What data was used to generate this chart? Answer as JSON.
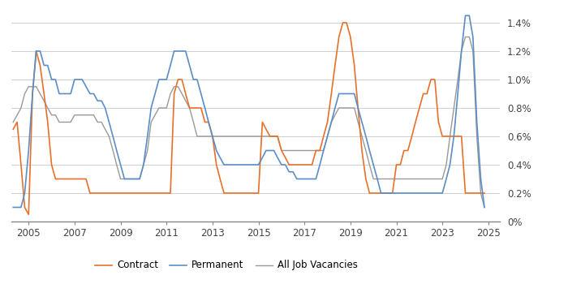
{
  "ylim": [
    0,
    0.015
  ],
  "yticks": [
    0,
    0.002,
    0.004,
    0.006,
    0.008,
    0.01,
    0.012,
    0.014
  ],
  "ytick_labels": [
    "0%",
    "0.2%",
    "0.4%",
    "0.6%",
    "0.8%",
    "1.0%",
    "1.2%",
    "1.4%"
  ],
  "xlim_start": 2004.25,
  "xlim_end": 2025.5,
  "xticks": [
    2005,
    2007,
    2009,
    2011,
    2013,
    2015,
    2017,
    2019,
    2021,
    2023,
    2025
  ],
  "background_color": "#ffffff",
  "grid_color": "#d0d0d0",
  "contract_color": "#E8702A",
  "permanent_color": "#5B8DC8",
  "all_jobs_color": "#999999",
  "legend_labels": [
    "Contract",
    "Permanent",
    "All Job Vacancies"
  ],
  "contract": [
    [
      2004.33,
      0.0065
    ],
    [
      2004.5,
      0.007
    ],
    [
      2004.67,
      0.004
    ],
    [
      2004.83,
      0.001
    ],
    [
      2005.0,
      0.0005
    ],
    [
      2005.17,
      0.009
    ],
    [
      2005.33,
      0.012
    ],
    [
      2005.5,
      0.011
    ],
    [
      2005.67,
      0.009
    ],
    [
      2005.83,
      0.007
    ],
    [
      2006.0,
      0.004
    ],
    [
      2006.17,
      0.003
    ],
    [
      2006.33,
      0.003
    ],
    [
      2006.5,
      0.003
    ],
    [
      2006.67,
      0.003
    ],
    [
      2006.83,
      0.003
    ],
    [
      2007.0,
      0.003
    ],
    [
      2007.17,
      0.003
    ],
    [
      2007.33,
      0.003
    ],
    [
      2007.5,
      0.003
    ],
    [
      2007.67,
      0.002
    ],
    [
      2007.83,
      0.002
    ],
    [
      2008.0,
      0.002
    ],
    [
      2008.17,
      0.002
    ],
    [
      2008.33,
      0.002
    ],
    [
      2008.5,
      0.002
    ],
    [
      2008.67,
      0.002
    ],
    [
      2008.83,
      0.002
    ],
    [
      2009.0,
      0.002
    ],
    [
      2009.17,
      0.002
    ],
    [
      2009.33,
      0.002
    ],
    [
      2009.5,
      0.002
    ],
    [
      2009.67,
      0.002
    ],
    [
      2009.83,
      0.002
    ],
    [
      2010.0,
      0.002
    ],
    [
      2010.17,
      0.002
    ],
    [
      2010.33,
      0.002
    ],
    [
      2010.5,
      0.002
    ],
    [
      2010.67,
      0.002
    ],
    [
      2010.83,
      0.002
    ],
    [
      2011.0,
      0.002
    ],
    [
      2011.17,
      0.002
    ],
    [
      2011.33,
      0.009
    ],
    [
      2011.5,
      0.01
    ],
    [
      2011.67,
      0.01
    ],
    [
      2011.83,
      0.009
    ],
    [
      2012.0,
      0.008
    ],
    [
      2012.17,
      0.008
    ],
    [
      2012.33,
      0.008
    ],
    [
      2012.5,
      0.008
    ],
    [
      2012.67,
      0.007
    ],
    [
      2012.83,
      0.007
    ],
    [
      2013.0,
      0.006
    ],
    [
      2013.17,
      0.004
    ],
    [
      2013.33,
      0.003
    ],
    [
      2013.5,
      0.002
    ],
    [
      2013.67,
      0.002
    ],
    [
      2013.83,
      0.002
    ],
    [
      2014.0,
      0.002
    ],
    [
      2014.17,
      0.002
    ],
    [
      2014.33,
      0.002
    ],
    [
      2014.5,
      0.002
    ],
    [
      2014.67,
      0.002
    ],
    [
      2014.83,
      0.002
    ],
    [
      2015.0,
      0.002
    ],
    [
      2015.17,
      0.007
    ],
    [
      2015.33,
      0.0065
    ],
    [
      2015.5,
      0.006
    ],
    [
      2015.67,
      0.006
    ],
    [
      2015.83,
      0.006
    ],
    [
      2016.0,
      0.005
    ],
    [
      2016.17,
      0.0045
    ],
    [
      2016.33,
      0.004
    ],
    [
      2016.5,
      0.004
    ],
    [
      2016.67,
      0.004
    ],
    [
      2016.83,
      0.004
    ],
    [
      2017.0,
      0.004
    ],
    [
      2017.17,
      0.004
    ],
    [
      2017.33,
      0.004
    ],
    [
      2017.5,
      0.005
    ],
    [
      2017.67,
      0.005
    ],
    [
      2017.83,
      0.006
    ],
    [
      2018.0,
      0.007
    ],
    [
      2018.17,
      0.009
    ],
    [
      2018.33,
      0.011
    ],
    [
      2018.5,
      0.013
    ],
    [
      2018.67,
      0.014
    ],
    [
      2018.83,
      0.014
    ],
    [
      2019.0,
      0.013
    ],
    [
      2019.17,
      0.011
    ],
    [
      2019.33,
      0.008
    ],
    [
      2019.5,
      0.005
    ],
    [
      2019.67,
      0.003
    ],
    [
      2019.83,
      0.002
    ],
    [
      2020.0,
      0.002
    ],
    [
      2020.17,
      0.002
    ],
    [
      2020.33,
      0.002
    ],
    [
      2020.5,
      0.002
    ],
    [
      2020.67,
      0.002
    ],
    [
      2020.83,
      0.002
    ],
    [
      2021.0,
      0.004
    ],
    [
      2021.17,
      0.004
    ],
    [
      2021.33,
      0.005
    ],
    [
      2021.5,
      0.005
    ],
    [
      2021.67,
      0.006
    ],
    [
      2021.83,
      0.007
    ],
    [
      2022.0,
      0.008
    ],
    [
      2022.17,
      0.009
    ],
    [
      2022.33,
      0.009
    ],
    [
      2022.5,
      0.01
    ],
    [
      2022.67,
      0.01
    ],
    [
      2022.83,
      0.007
    ],
    [
      2023.0,
      0.006
    ],
    [
      2023.17,
      0.006
    ],
    [
      2023.33,
      0.006
    ],
    [
      2023.5,
      0.006
    ],
    [
      2023.67,
      0.006
    ],
    [
      2023.83,
      0.006
    ],
    [
      2024.0,
      0.002
    ],
    [
      2024.17,
      0.002
    ],
    [
      2024.33,
      0.002
    ],
    [
      2024.5,
      0.002
    ],
    [
      2024.67,
      0.002
    ],
    [
      2024.83,
      0.002
    ]
  ],
  "permanent": [
    [
      2004.33,
      0.001
    ],
    [
      2004.5,
      0.001
    ],
    [
      2004.67,
      0.001
    ],
    [
      2004.83,
      0.002
    ],
    [
      2005.0,
      0.005
    ],
    [
      2005.17,
      0.009
    ],
    [
      2005.33,
      0.012
    ],
    [
      2005.5,
      0.012
    ],
    [
      2005.67,
      0.011
    ],
    [
      2005.83,
      0.011
    ],
    [
      2006.0,
      0.01
    ],
    [
      2006.17,
      0.01
    ],
    [
      2006.33,
      0.009
    ],
    [
      2006.5,
      0.009
    ],
    [
      2006.67,
      0.009
    ],
    [
      2006.83,
      0.009
    ],
    [
      2007.0,
      0.01
    ],
    [
      2007.17,
      0.01
    ],
    [
      2007.33,
      0.01
    ],
    [
      2007.5,
      0.0095
    ],
    [
      2007.67,
      0.009
    ],
    [
      2007.83,
      0.009
    ],
    [
      2008.0,
      0.0085
    ],
    [
      2008.17,
      0.0085
    ],
    [
      2008.33,
      0.008
    ],
    [
      2008.5,
      0.007
    ],
    [
      2008.67,
      0.006
    ],
    [
      2008.83,
      0.005
    ],
    [
      2009.0,
      0.004
    ],
    [
      2009.17,
      0.003
    ],
    [
      2009.33,
      0.003
    ],
    [
      2009.5,
      0.003
    ],
    [
      2009.67,
      0.003
    ],
    [
      2009.83,
      0.003
    ],
    [
      2010.0,
      0.004
    ],
    [
      2010.17,
      0.006
    ],
    [
      2010.33,
      0.008
    ],
    [
      2010.5,
      0.009
    ],
    [
      2010.67,
      0.01
    ],
    [
      2010.83,
      0.01
    ],
    [
      2011.0,
      0.01
    ],
    [
      2011.17,
      0.011
    ],
    [
      2011.33,
      0.012
    ],
    [
      2011.5,
      0.012
    ],
    [
      2011.67,
      0.012
    ],
    [
      2011.83,
      0.012
    ],
    [
      2012.0,
      0.011
    ],
    [
      2012.17,
      0.01
    ],
    [
      2012.33,
      0.01
    ],
    [
      2012.5,
      0.009
    ],
    [
      2012.67,
      0.008
    ],
    [
      2012.83,
      0.007
    ],
    [
      2013.0,
      0.006
    ],
    [
      2013.17,
      0.005
    ],
    [
      2013.33,
      0.0045
    ],
    [
      2013.5,
      0.004
    ],
    [
      2013.67,
      0.004
    ],
    [
      2013.83,
      0.004
    ],
    [
      2014.0,
      0.004
    ],
    [
      2014.17,
      0.004
    ],
    [
      2014.33,
      0.004
    ],
    [
      2014.5,
      0.004
    ],
    [
      2014.67,
      0.004
    ],
    [
      2014.83,
      0.004
    ],
    [
      2015.0,
      0.004
    ],
    [
      2015.17,
      0.0045
    ],
    [
      2015.33,
      0.005
    ],
    [
      2015.5,
      0.005
    ],
    [
      2015.67,
      0.005
    ],
    [
      2015.83,
      0.0045
    ],
    [
      2016.0,
      0.004
    ],
    [
      2016.17,
      0.004
    ],
    [
      2016.33,
      0.0035
    ],
    [
      2016.5,
      0.0035
    ],
    [
      2016.67,
      0.003
    ],
    [
      2016.83,
      0.003
    ],
    [
      2017.0,
      0.003
    ],
    [
      2017.17,
      0.003
    ],
    [
      2017.33,
      0.003
    ],
    [
      2017.5,
      0.003
    ],
    [
      2017.67,
      0.004
    ],
    [
      2017.83,
      0.005
    ],
    [
      2018.0,
      0.006
    ],
    [
      2018.17,
      0.007
    ],
    [
      2018.33,
      0.008
    ],
    [
      2018.5,
      0.009
    ],
    [
      2018.67,
      0.009
    ],
    [
      2018.83,
      0.009
    ],
    [
      2019.0,
      0.009
    ],
    [
      2019.17,
      0.009
    ],
    [
      2019.33,
      0.008
    ],
    [
      2019.5,
      0.007
    ],
    [
      2019.67,
      0.006
    ],
    [
      2019.83,
      0.005
    ],
    [
      2020.0,
      0.004
    ],
    [
      2020.17,
      0.003
    ],
    [
      2020.33,
      0.002
    ],
    [
      2020.5,
      0.002
    ],
    [
      2020.67,
      0.002
    ],
    [
      2020.83,
      0.002
    ],
    [
      2021.0,
      0.002
    ],
    [
      2021.17,
      0.002
    ],
    [
      2021.33,
      0.002
    ],
    [
      2021.5,
      0.002
    ],
    [
      2021.67,
      0.002
    ],
    [
      2021.83,
      0.002
    ],
    [
      2022.0,
      0.002
    ],
    [
      2022.17,
      0.002
    ],
    [
      2022.33,
      0.002
    ],
    [
      2022.5,
      0.002
    ],
    [
      2022.67,
      0.002
    ],
    [
      2022.83,
      0.002
    ],
    [
      2023.0,
      0.002
    ],
    [
      2023.17,
      0.003
    ],
    [
      2023.33,
      0.004
    ],
    [
      2023.5,
      0.006
    ],
    [
      2023.67,
      0.009
    ],
    [
      2023.83,
      0.012
    ],
    [
      2024.0,
      0.0145
    ],
    [
      2024.17,
      0.0145
    ],
    [
      2024.33,
      0.013
    ],
    [
      2024.5,
      0.007
    ],
    [
      2024.67,
      0.003
    ],
    [
      2024.83,
      0.001
    ]
  ],
  "all_jobs": [
    [
      2004.33,
      0.007
    ],
    [
      2004.5,
      0.0075
    ],
    [
      2004.67,
      0.008
    ],
    [
      2004.83,
      0.009
    ],
    [
      2005.0,
      0.0095
    ],
    [
      2005.17,
      0.0095
    ],
    [
      2005.33,
      0.0095
    ],
    [
      2005.5,
      0.009
    ],
    [
      2005.67,
      0.0085
    ],
    [
      2005.83,
      0.008
    ],
    [
      2006.0,
      0.0075
    ],
    [
      2006.17,
      0.0075
    ],
    [
      2006.33,
      0.007
    ],
    [
      2006.5,
      0.007
    ],
    [
      2006.67,
      0.007
    ],
    [
      2006.83,
      0.007
    ],
    [
      2007.0,
      0.0075
    ],
    [
      2007.17,
      0.0075
    ],
    [
      2007.33,
      0.0075
    ],
    [
      2007.5,
      0.0075
    ],
    [
      2007.67,
      0.0075
    ],
    [
      2007.83,
      0.0075
    ],
    [
      2008.0,
      0.007
    ],
    [
      2008.17,
      0.007
    ],
    [
      2008.33,
      0.0065
    ],
    [
      2008.5,
      0.006
    ],
    [
      2008.67,
      0.005
    ],
    [
      2008.83,
      0.004
    ],
    [
      2009.0,
      0.003
    ],
    [
      2009.17,
      0.003
    ],
    [
      2009.33,
      0.003
    ],
    [
      2009.5,
      0.003
    ],
    [
      2009.67,
      0.003
    ],
    [
      2009.83,
      0.003
    ],
    [
      2010.0,
      0.004
    ],
    [
      2010.17,
      0.005
    ],
    [
      2010.33,
      0.007
    ],
    [
      2010.5,
      0.0075
    ],
    [
      2010.67,
      0.008
    ],
    [
      2010.83,
      0.008
    ],
    [
      2011.0,
      0.008
    ],
    [
      2011.17,
      0.009
    ],
    [
      2011.33,
      0.0095
    ],
    [
      2011.5,
      0.0095
    ],
    [
      2011.67,
      0.009
    ],
    [
      2011.83,
      0.0085
    ],
    [
      2012.0,
      0.008
    ],
    [
      2012.17,
      0.007
    ],
    [
      2012.33,
      0.006
    ],
    [
      2012.5,
      0.006
    ],
    [
      2012.67,
      0.006
    ],
    [
      2012.83,
      0.006
    ],
    [
      2013.0,
      0.006
    ],
    [
      2013.17,
      0.006
    ],
    [
      2013.33,
      0.006
    ],
    [
      2013.5,
      0.006
    ],
    [
      2013.67,
      0.006
    ],
    [
      2013.83,
      0.006
    ],
    [
      2014.0,
      0.006
    ],
    [
      2014.17,
      0.006
    ],
    [
      2014.33,
      0.006
    ],
    [
      2014.5,
      0.006
    ],
    [
      2014.67,
      0.006
    ],
    [
      2014.83,
      0.006
    ],
    [
      2015.0,
      0.006
    ],
    [
      2015.17,
      0.006
    ],
    [
      2015.33,
      0.006
    ],
    [
      2015.5,
      0.006
    ],
    [
      2015.67,
      0.006
    ],
    [
      2015.83,
      0.006
    ],
    [
      2016.0,
      0.005
    ],
    [
      2016.17,
      0.005
    ],
    [
      2016.33,
      0.005
    ],
    [
      2016.5,
      0.005
    ],
    [
      2016.67,
      0.005
    ],
    [
      2016.83,
      0.005
    ],
    [
      2017.0,
      0.005
    ],
    [
      2017.17,
      0.005
    ],
    [
      2017.33,
      0.005
    ],
    [
      2017.5,
      0.005
    ],
    [
      2017.67,
      0.005
    ],
    [
      2017.83,
      0.005
    ],
    [
      2018.0,
      0.006
    ],
    [
      2018.17,
      0.007
    ],
    [
      2018.33,
      0.0075
    ],
    [
      2018.5,
      0.008
    ],
    [
      2018.67,
      0.008
    ],
    [
      2018.83,
      0.008
    ],
    [
      2019.0,
      0.008
    ],
    [
      2019.17,
      0.008
    ],
    [
      2019.33,
      0.007
    ],
    [
      2019.5,
      0.006
    ],
    [
      2019.67,
      0.005
    ],
    [
      2019.83,
      0.004
    ],
    [
      2020.0,
      0.003
    ],
    [
      2020.17,
      0.003
    ],
    [
      2020.33,
      0.003
    ],
    [
      2020.5,
      0.003
    ],
    [
      2020.67,
      0.003
    ],
    [
      2020.83,
      0.003
    ],
    [
      2021.0,
      0.003
    ],
    [
      2021.17,
      0.003
    ],
    [
      2021.33,
      0.003
    ],
    [
      2021.5,
      0.003
    ],
    [
      2021.67,
      0.003
    ],
    [
      2021.83,
      0.003
    ],
    [
      2022.0,
      0.003
    ],
    [
      2022.17,
      0.003
    ],
    [
      2022.33,
      0.003
    ],
    [
      2022.5,
      0.003
    ],
    [
      2022.67,
      0.003
    ],
    [
      2022.83,
      0.003
    ],
    [
      2023.0,
      0.003
    ],
    [
      2023.17,
      0.004
    ],
    [
      2023.33,
      0.006
    ],
    [
      2023.5,
      0.008
    ],
    [
      2023.67,
      0.01
    ],
    [
      2023.83,
      0.012
    ],
    [
      2024.0,
      0.013
    ],
    [
      2024.17,
      0.013
    ],
    [
      2024.33,
      0.012
    ],
    [
      2024.5,
      0.006
    ],
    [
      2024.67,
      0.002
    ],
    [
      2024.83,
      0.001
    ]
  ]
}
